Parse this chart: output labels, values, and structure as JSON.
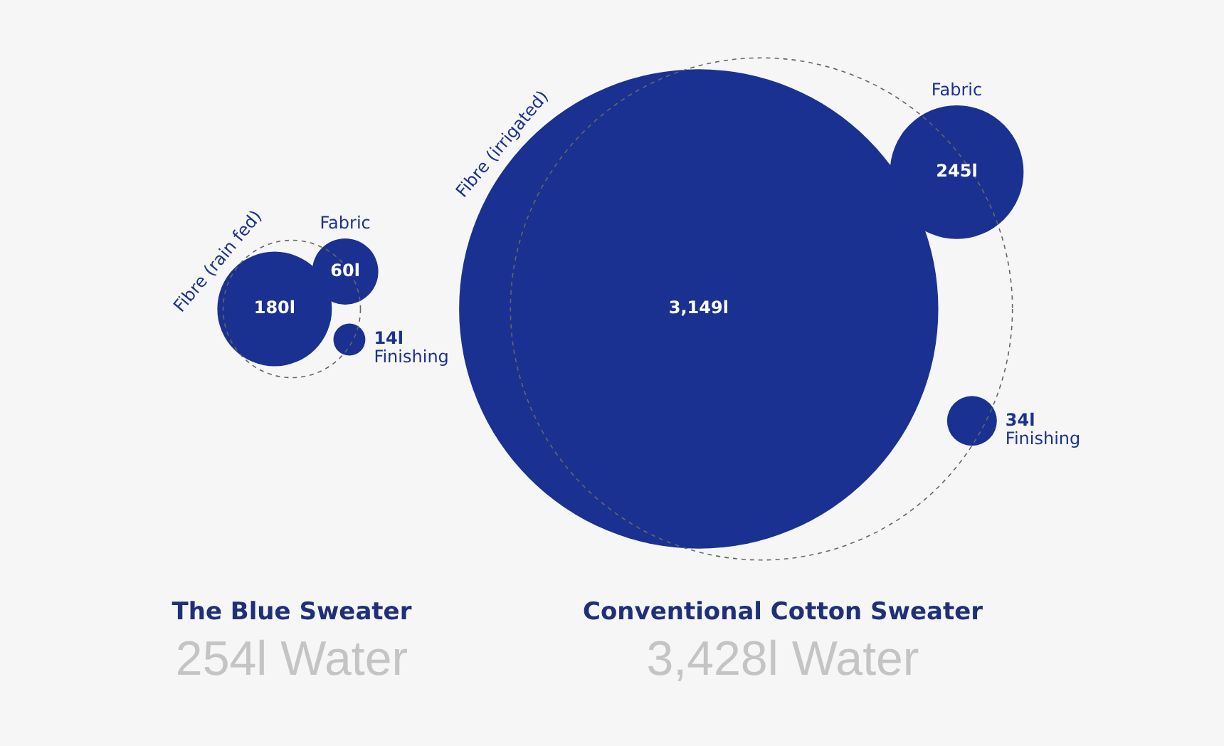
{
  "chart_data": [
    {
      "type": "other",
      "title": "The Blue Sweater",
      "subtitle": "254l Water",
      "categories": [
        "Fibre (rain fed)",
        "Fabric",
        "Finishing"
      ],
      "values": [
        180,
        60,
        14
      ],
      "value_labels": [
        "180l",
        "60l",
        "14l"
      ],
      "color": "#1a3192"
    },
    {
      "type": "other",
      "title": "Conventional Cotton Sweater",
      "subtitle": "3,428l Water",
      "categories": [
        "Fibre (irrigated)",
        "Fabric",
        "Finishing"
      ],
      "values": [
        3149,
        245,
        34
      ],
      "value_labels": [
        "3,149l",
        "245l",
        "34l"
      ],
      "color": "#1a3192"
    }
  ]
}
